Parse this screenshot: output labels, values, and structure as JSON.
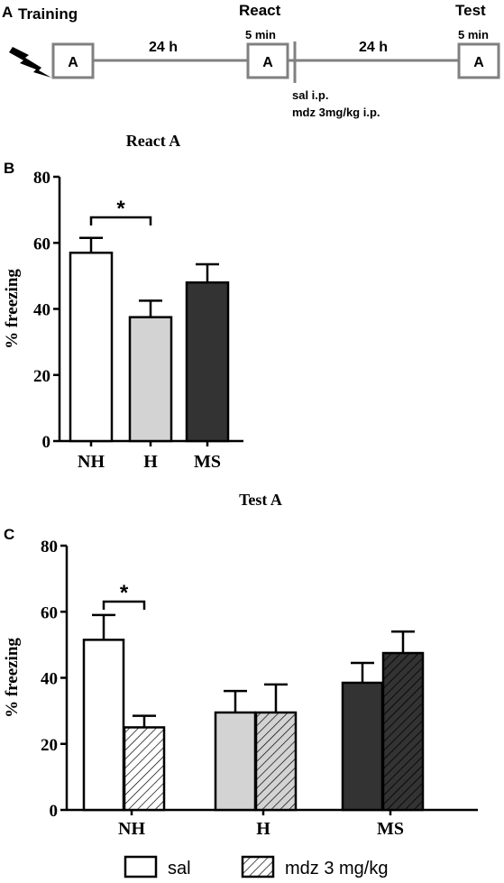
{
  "panel_a": {
    "letter": "A",
    "training_label": "Training",
    "react_label": "React",
    "test_label": "Test",
    "react_duration": "5 min",
    "test_duration": "5 min",
    "interval_1": "24 h",
    "interval_2": "24 h",
    "context_training": "A",
    "context_react": "A",
    "context_test": "A",
    "injection_1": "sal i.p.",
    "injection_2": "mdz 3mg/kg i.p.",
    "shock_icon": "lightning-bolt-icon"
  },
  "legend": {
    "sal": "sal",
    "mdz": "mdz 3 mg/kg"
  },
  "colors": {
    "NH": "#ffffff",
    "H": "#d3d3d3",
    "MS": "#333333",
    "outline": "#000000",
    "timeline": "#808080"
  },
  "chart_data": [
    {
      "panel": "B",
      "type": "bar",
      "title": "React A",
      "ylabel": "% freezing",
      "xlabel": "",
      "ylim": [
        0,
        80
      ],
      "yticks": [
        "0",
        "20",
        "40",
        "60",
        "80"
      ],
      "categories": [
        "NH",
        "H",
        "MS"
      ],
      "values": [
        57,
        37.5,
        48
      ],
      "errors": [
        4.5,
        5,
        5.5
      ],
      "significance": {
        "between": [
          "NH",
          "H"
        ],
        "label": "*"
      }
    },
    {
      "panel": "C",
      "type": "bar",
      "title": "Test A",
      "ylabel": "% freezing",
      "xlabel": "",
      "ylim": [
        0,
        80
      ],
      "yticks": [
        "0",
        "20",
        "40",
        "60",
        "80"
      ],
      "categories": [
        "NH",
        "H",
        "MS"
      ],
      "series": [
        {
          "name": "sal",
          "values": [
            51.5,
            29.5,
            38.5
          ],
          "errors": [
            7.5,
            6.5,
            6
          ]
        },
        {
          "name": "mdz 3 mg/kg",
          "values": [
            25,
            29.5,
            47.5
          ],
          "errors": [
            3.5,
            8.5,
            6.5
          ]
        }
      ],
      "significance": {
        "between": [
          "NH sal",
          "NH mdz 3 mg/kg"
        ],
        "label": "*"
      }
    }
  ]
}
